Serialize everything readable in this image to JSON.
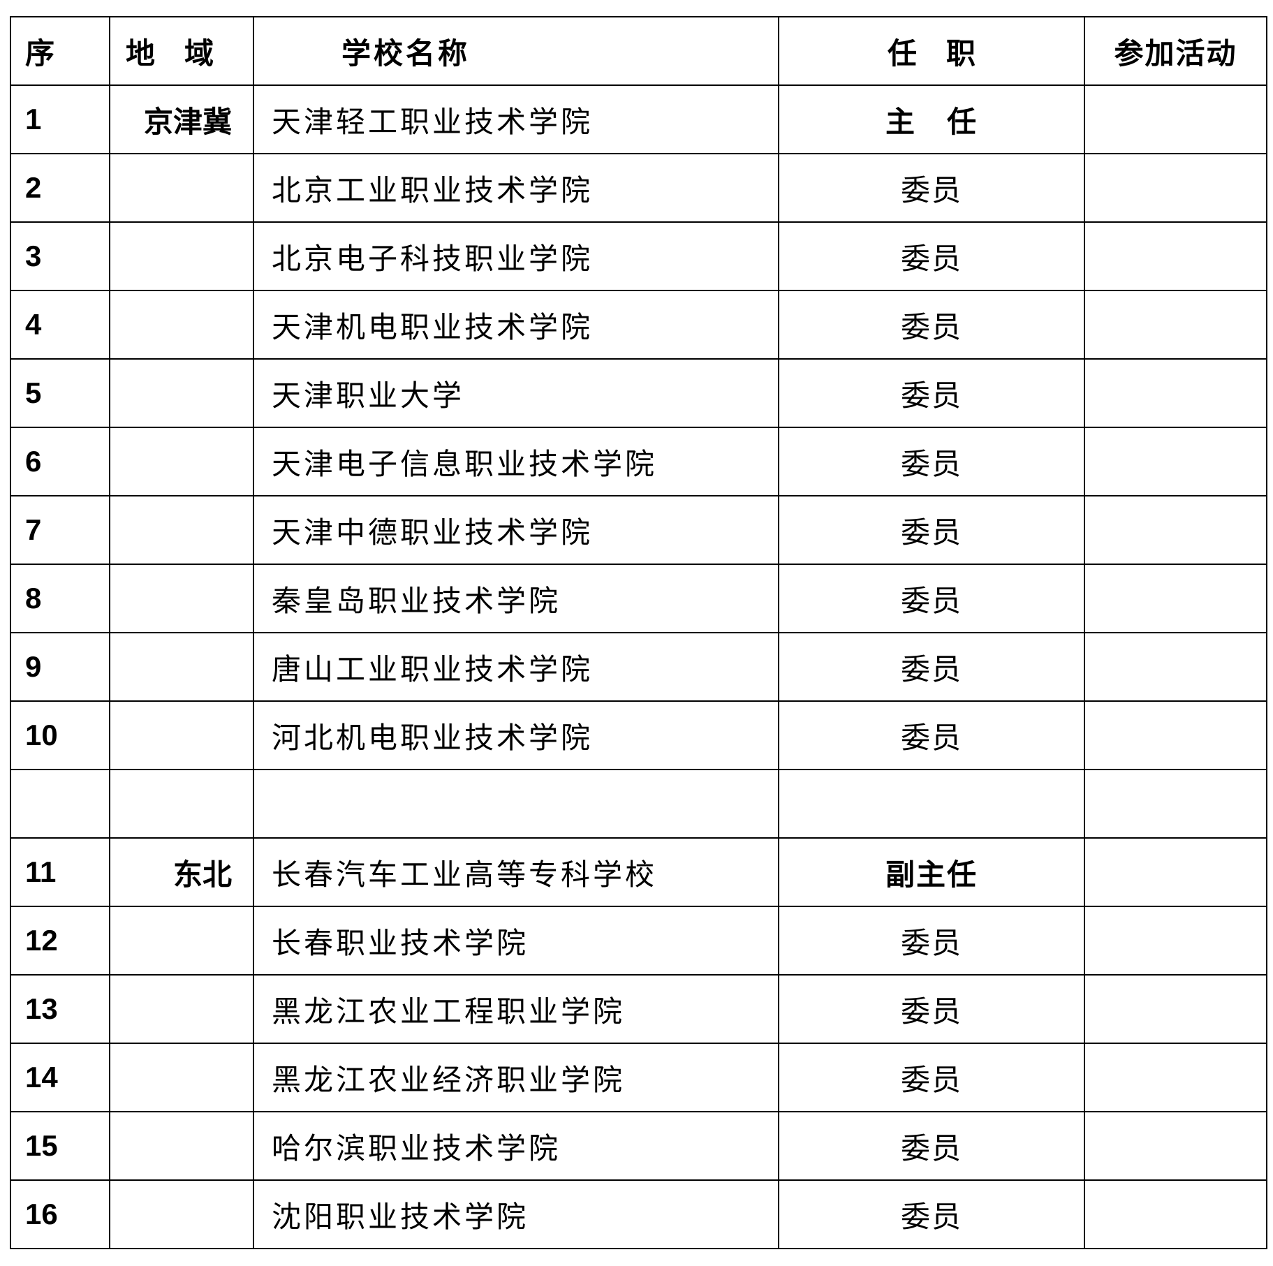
{
  "headers": [
    "序",
    "地　域",
    "学校名称",
    "任　职",
    "参加活动"
  ],
  "rows": [
    {
      "seq": "1",
      "region": "京津冀",
      "name": "天津轻工职业技术学院",
      "role": "主　任",
      "activity": "",
      "bold": true
    },
    {
      "seq": "2",
      "region": "",
      "name": "北京工业职业技术学院",
      "role": "委员",
      "activity": ""
    },
    {
      "seq": "3",
      "region": "",
      "name": "北京电子科技职业学院",
      "role": "委员",
      "activity": ""
    },
    {
      "seq": "4",
      "region": "",
      "name": "天津机电职业技术学院",
      "role": "委员",
      "activity": ""
    },
    {
      "seq": "5",
      "region": "",
      "name": "天津职业大学",
      "role": "委员",
      "activity": ""
    },
    {
      "seq": "6",
      "region": "",
      "name": "天津电子信息职业技术学院",
      "role": "委员",
      "activity": ""
    },
    {
      "seq": "7",
      "region": "",
      "name": "天津中德职业技术学院",
      "role": "委员",
      "activity": ""
    },
    {
      "seq": "8",
      "region": "",
      "name": "秦皇岛职业技术学院",
      "role": "委员",
      "activity": ""
    },
    {
      "seq": "9",
      "region": "",
      "name": "唐山工业职业技术学院",
      "role": "委员",
      "activity": ""
    },
    {
      "seq": "10",
      "region": "",
      "name": "河北机电职业技术学院",
      "role": "委员",
      "activity": ""
    },
    {
      "seq": "",
      "region": "",
      "name": "",
      "role": "",
      "activity": ""
    },
    {
      "seq": "11",
      "region": "东北",
      "name": "长春汽车工业高等专科学校",
      "role": "副主任",
      "activity": "",
      "bold": true
    },
    {
      "seq": "12",
      "region": "",
      "name": "长春职业技术学院",
      "role": "委员",
      "activity": ""
    },
    {
      "seq": "13",
      "region": "",
      "name": "黑龙江农业工程职业学院",
      "role": "委员",
      "activity": ""
    },
    {
      "seq": "14",
      "region": "",
      "name": "黑龙江农业经济职业学院",
      "role": "委员",
      "activity": ""
    },
    {
      "seq": "15",
      "region": "",
      "name": "哈尔滨职业技术学院",
      "role": "委员",
      "activity": ""
    },
    {
      "seq": "16",
      "region": "",
      "name": "沈阳职业技术学院",
      "role": "委员",
      "activity": ""
    }
  ]
}
